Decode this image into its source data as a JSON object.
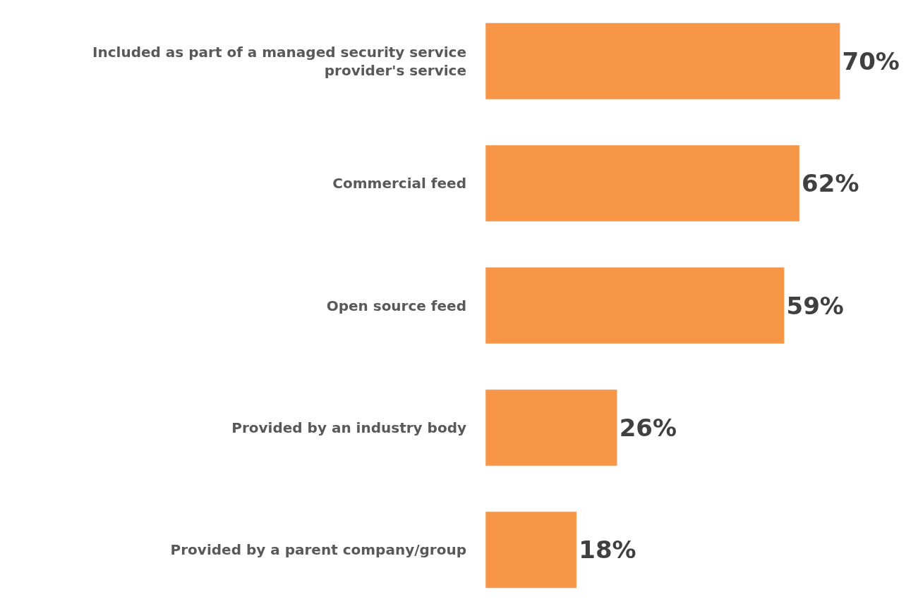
{
  "chart_data": {
    "type": "bar",
    "orientation": "horizontal",
    "categories": [
      "Included as part of a managed security service provider's service",
      "Commercial feed",
      "Open source feed",
      "Provided by an industry body",
      "Provided by a parent company/group"
    ],
    "values": [
      70,
      62,
      59,
      26,
      18
    ],
    "value_labels": [
      "70%",
      "62%",
      "59%",
      "26%",
      "18%"
    ],
    "color": "#f79646",
    "tick_labels": "y"
  }
}
